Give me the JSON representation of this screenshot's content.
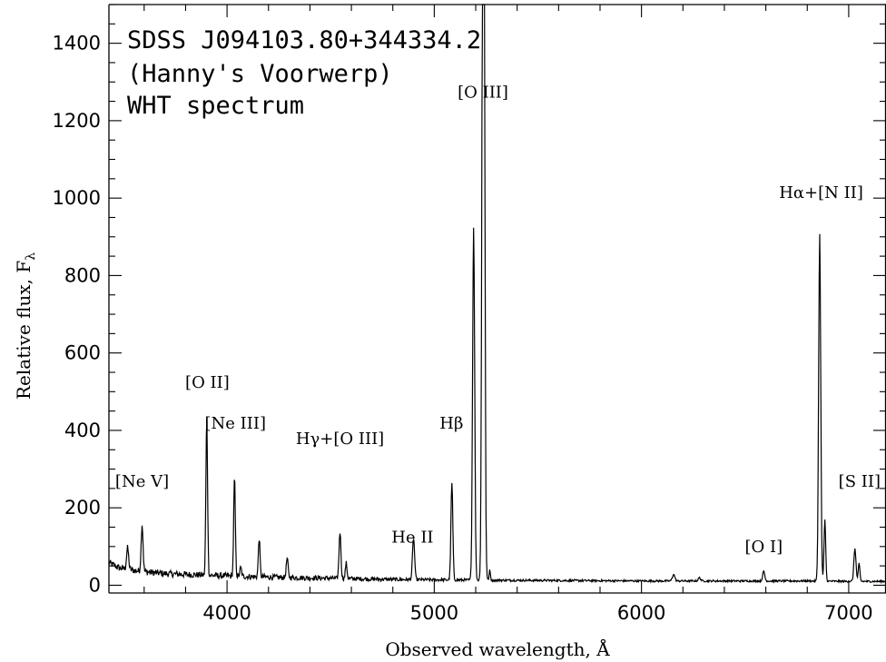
{
  "chart_data": {
    "type": "line",
    "title_lines": [
      "SDSS J094103.80+344334.2",
      "(Hanny's Voorwerp)",
      "WHT spectrum"
    ],
    "xlabel": "Observed wavelength, Å",
    "ylabel_main": "Relative flux, F",
    "ylabel_sub": "λ",
    "xlim": [
      3430,
      7180
    ],
    "ylim": [
      -20,
      1500
    ],
    "xticks": [
      4000,
      5000,
      6000,
      7000
    ],
    "yticks": [
      0,
      200,
      400,
      600,
      800,
      1000,
      1200,
      1400
    ],
    "x_minor_step": 200,
    "y_minor_step": 50,
    "grid": false,
    "continuum": [
      [
        3430,
        58
      ],
      [
        3480,
        45
      ],
      [
        3530,
        40
      ],
      [
        3600,
        35
      ],
      [
        3700,
        30
      ],
      [
        3800,
        28
      ],
      [
        3900,
        26
      ],
      [
        4000,
        24
      ],
      [
        4200,
        21
      ],
      [
        4400,
        19
      ],
      [
        4600,
        17
      ],
      [
        4800,
        15
      ],
      [
        5000,
        14
      ],
      [
        5300,
        13
      ],
      [
        5700,
        12
      ],
      [
        6000,
        11
      ],
      [
        6500,
        11
      ],
      [
        6800,
        11
      ],
      [
        7000,
        10
      ],
      [
        7180,
        10
      ]
    ],
    "lines": [
      {
        "x": 3520,
        "height": 55,
        "sigma": 5
      },
      {
        "x": 3590,
        "height": 122,
        "sigma": 4.5
      },
      {
        "x": 3902,
        "height": 405,
        "sigma": 4
      },
      {
        "x": 4036,
        "height": 253,
        "sigma": 4
      },
      {
        "x": 4066,
        "height": 22,
        "sigma": 4
      },
      {
        "x": 4155,
        "height": 100,
        "sigma": 4
      },
      {
        "x": 4290,
        "height": 48,
        "sigma": 4.5
      },
      {
        "x": 4545,
        "height": 120,
        "sigma": 4.5
      },
      {
        "x": 4575,
        "height": 40,
        "sigma": 4
      },
      {
        "x": 4900,
        "height": 108,
        "sigma": 5
      },
      {
        "x": 5085,
        "height": 250,
        "sigma": 4.5
      },
      {
        "x": 5190,
        "height": 910,
        "sigma": 5
      },
      {
        "x": 5237,
        "height": 2700,
        "sigma": 5.5
      },
      {
        "x": 5268,
        "height": 25,
        "sigma": 3
      },
      {
        "x": 6155,
        "height": 17,
        "sigma": 6
      },
      {
        "x": 6280,
        "height": 8,
        "sigma": 6
      },
      {
        "x": 6590,
        "height": 25,
        "sigma": 5
      },
      {
        "x": 6860,
        "height": 895,
        "sigma": 5
      },
      {
        "x": 6885,
        "height": 158,
        "sigma": 4
      },
      {
        "x": 7030,
        "height": 85,
        "sigma": 5
      },
      {
        "x": 7050,
        "height": 45,
        "sigma": 4
      }
    ],
    "noise_amplitude": [
      [
        3430,
        9
      ],
      [
        4000,
        8
      ],
      [
        4500,
        6
      ],
      [
        5000,
        4
      ],
      [
        5300,
        3
      ],
      [
        6000,
        2.5
      ],
      [
        7180,
        2.5
      ]
    ],
    "annotations": [
      {
        "text": "[Ne V]",
        "x": 3590,
        "y": 255
      },
      {
        "text": "[O II]",
        "x": 3905,
        "y": 510
      },
      {
        "text": "[Ne III]",
        "x": 4040,
        "y": 405
      },
      {
        "text": "Hγ+[O III]",
        "x": 4545,
        "y": 365
      },
      {
        "text": "He II",
        "x": 4895,
        "y": 110
      },
      {
        "text": "Hβ",
        "x": 5083,
        "y": 405
      },
      {
        "text": "[O III]",
        "x": 5235,
        "y": 1260
      },
      {
        "text": "[O I]",
        "x": 6590,
        "y": 85
      },
      {
        "text": "Hα+[N II]",
        "x": 6867,
        "y": 1000
      },
      {
        "text": "[S II]",
        "x": 7030,
        "y": 255
      }
    ]
  }
}
